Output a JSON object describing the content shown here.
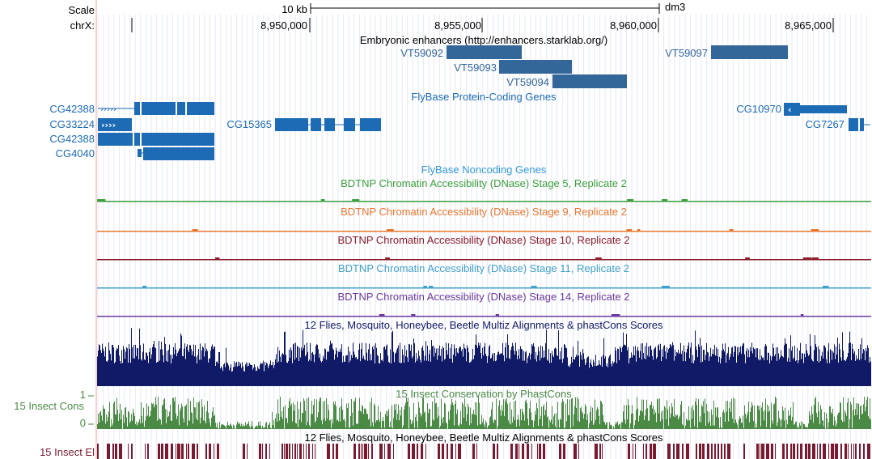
{
  "header": {
    "scale_label": "Scale",
    "chrom_label": "chrX:",
    "scale_text": "10 kb",
    "assembly": "dm3"
  },
  "ruler": {
    "ticks": [
      "8,950,000",
      "8,955,000",
      "8,960,000",
      "8,965,000"
    ]
  },
  "tracks": {
    "embryonic_enhancers": {
      "title": "Embryonic enhancers (http://enhancers.starklab.org/)",
      "color": "#336699",
      "items": [
        "VT59092",
        "VT59093",
        "VT59094",
        "VT59097"
      ]
    },
    "flybase_coding": {
      "title": "FlyBase Protein-Coding Genes",
      "color": "#1c6bb4",
      "genes": [
        "CG42388",
        "CG33224",
        "CG42388",
        "CG4040",
        "CG15365",
        "CG10970",
        "CG7267"
      ]
    },
    "flybase_noncoding": {
      "title": "FlyBase Noncoding Genes",
      "color": "#3399dd"
    },
    "dnase": [
      {
        "title": "BDTNP Chromatin Accessibility (DNase) Stage 5, Replicate 2",
        "color": "#3a9e3a"
      },
      {
        "title": "BDTNP Chromatin Accessibility (DNase) Stage 9, Replicate 2",
        "color": "#e8772e"
      },
      {
        "title": "BDTNP Chromatin Accessibility (DNase) Stage 10, Replicate 2",
        "color": "#8b1c2a"
      },
      {
        "title": "BDTNP Chromatin Accessibility (DNase) Stage 11, Replicate 2",
        "color": "#3fa0c8"
      },
      {
        "title": "BDTNP Chromatin Accessibility (DNase) Stage 14, Replicate 2",
        "color": "#6b3a9e"
      }
    ],
    "multiz": {
      "title": "12 Flies, Mosquito, Honeybee, Beetle Multiz Alignments & phastCons Scores",
      "color": "#101a66"
    },
    "phastcons": {
      "title": "15 Insect Conservation by PhastCons",
      "side_label": "15 Insect Cons",
      "axis_max": "1",
      "axis_min": "0",
      "color": "#4a8a44"
    },
    "elements": {
      "title": "12 Flies, Mosquito, Honeybee, Beetle Multiz Alignments & phastCons Scores",
      "side_label": "15 Insect El",
      "color": "#7a1a30"
    }
  }
}
